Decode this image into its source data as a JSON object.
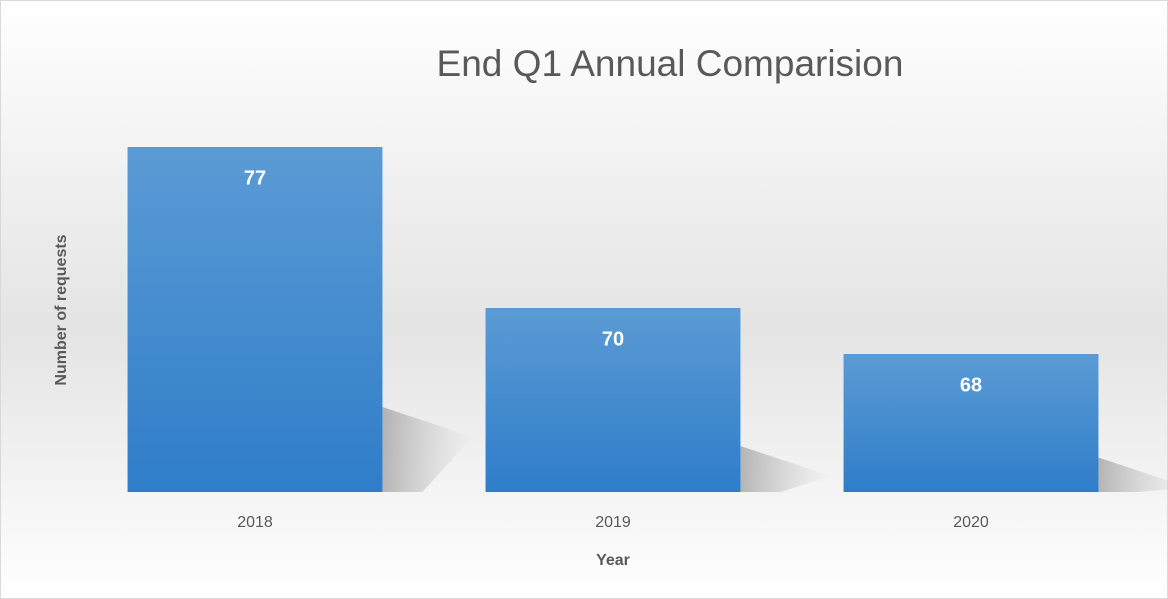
{
  "chart_data": {
    "type": "bar",
    "title": "End Q1 Annual Comparision",
    "x_label": "Year",
    "y_label": "Number of requests",
    "categories": [
      "2018",
      "2019",
      "2020"
    ],
    "values": [
      77,
      70,
      68
    ],
    "color": "#4a8fd6",
    "ylim": [
      62,
      79
    ],
    "grid": false,
    "legend": false
  }
}
